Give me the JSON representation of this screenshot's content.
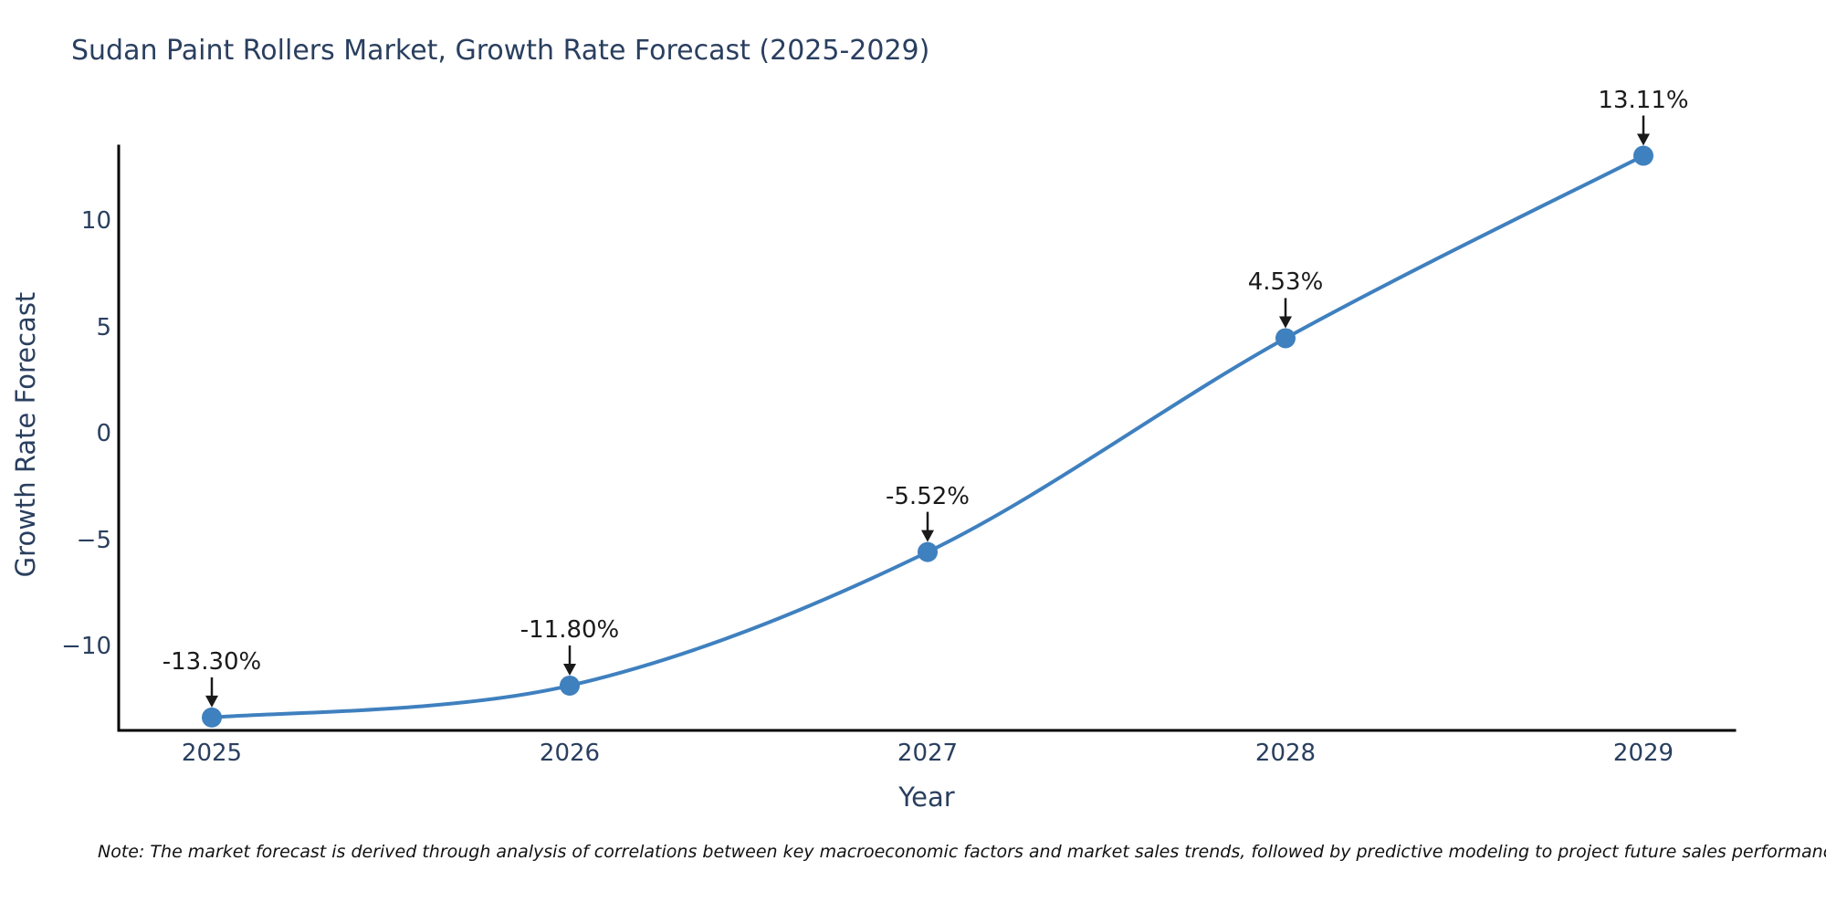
{
  "chart_data": {
    "type": "line",
    "title": "Sudan Paint Rollers Market, Growth Rate Forecast (2025-2029)",
    "xlabel": "Year",
    "ylabel": "Growth Rate Forecast",
    "categories": [
      "2025",
      "2026",
      "2027",
      "2028",
      "2029"
    ],
    "values": [
      -13.3,
      -11.8,
      -5.52,
      4.53,
      13.11
    ],
    "point_labels": [
      "-13.30%",
      "-11.80%",
      "-5.52%",
      "4.53%",
      "13.11%"
    ],
    "y_ticks": [
      "10",
      "5",
      "0",
      "−5",
      "−10"
    ],
    "ylim": [
      -13.9,
      13.6
    ],
    "grid": false,
    "legend": false,
    "line_shape": "spline",
    "line_color": "#3f80bf",
    "marker_color": "#3f80bf",
    "axis_color": "#000000",
    "text_color": "#2a3f5f",
    "annotation_color": "#1a1a1a",
    "note": "Note: The market forecast is derived through analysis of correlations between key macroeconomic factors and market sales trends, followed by predictive modeling to project future sales performance."
  }
}
